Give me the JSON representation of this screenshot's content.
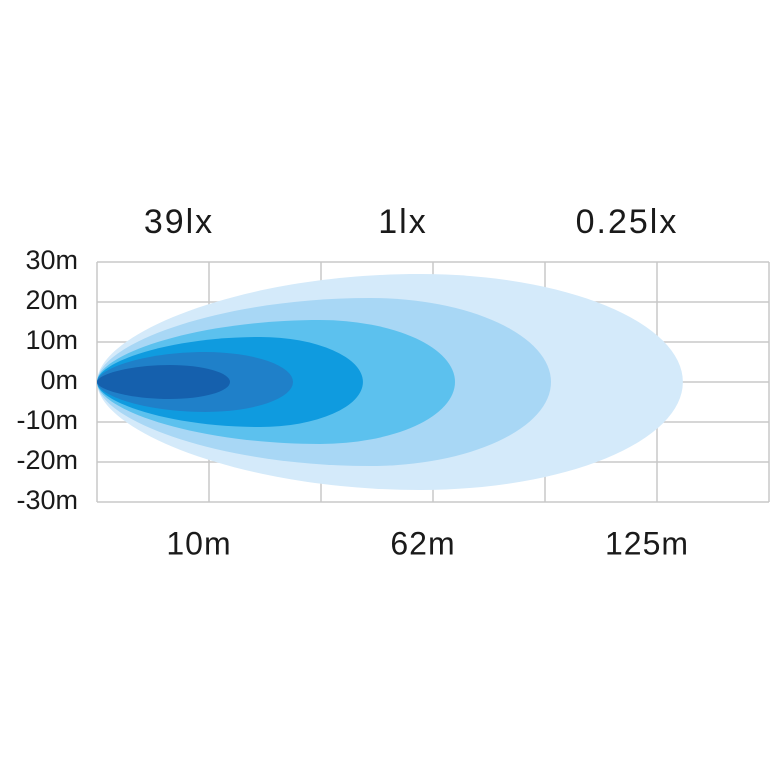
{
  "lux_labels": [
    "39lx",
    "1lx",
    "0.25lx"
  ],
  "distance_labels": [
    "10m",
    "62m",
    "125m"
  ],
  "y_axis_labels": [
    "30m",
    "20m",
    "10m",
    "0m",
    "-10m",
    "-20m",
    "-30m"
  ]
}
